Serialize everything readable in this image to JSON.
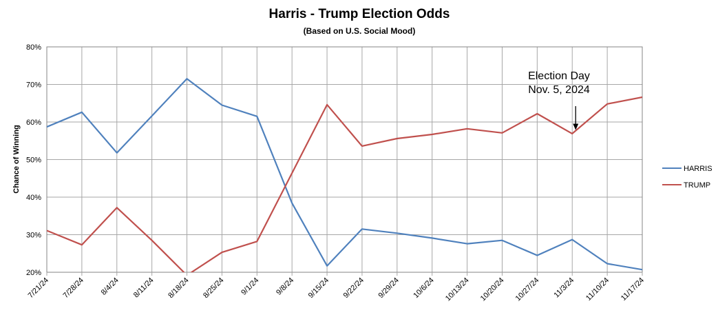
{
  "chart_data": {
    "type": "line",
    "title": "Harris - Trump Election Odds",
    "subtitle": "(Based on  U.S. Social Mood)",
    "xlabel": "",
    "ylabel": "Chance of Winning",
    "ylim": [
      20,
      80
    ],
    "yticks": [
      "20%",
      "30%",
      "40%",
      "50%",
      "60%",
      "70%",
      "80%"
    ],
    "grid": true,
    "legend_position": "right",
    "categories": [
      "7/21/24",
      "7/28/24",
      "8/4/24",
      "8/11/24",
      "8/18/24",
      "8/25/24",
      "9/1/24",
      "9/8/24",
      "9/15/24",
      "9/22/24",
      "9/29/24",
      "10/6/24",
      "10/13/24",
      "10/20/24",
      "10/27/24",
      "11/3/24",
      "11/10/24",
      "11/17/24"
    ],
    "series": [
      {
        "name": "HARRIS",
        "color": "#4f81bd",
        "values": [
          58.7,
          62.6,
          51.8,
          61.6,
          71.5,
          64.5,
          61.5,
          38.4,
          21.7,
          31.5,
          30.4,
          29.1,
          27.6,
          28.5,
          24.5,
          28.7,
          22.3,
          20.7
        ]
      },
      {
        "name": "TRUMP",
        "color": "#c0504d",
        "values": [
          31.1,
          27.3,
          37.2,
          28.5,
          19.2,
          25.3,
          28.2,
          46.4,
          64.6,
          53.6,
          55.6,
          56.7,
          58.2,
          57.1,
          62.2,
          56.9,
          64.8,
          66.6
        ]
      }
    ],
    "annotation": {
      "lines": [
        "Election Day",
        "Nov. 5, 2024"
      ],
      "at_category": "11/3/24",
      "at_value": 57.9
    }
  }
}
